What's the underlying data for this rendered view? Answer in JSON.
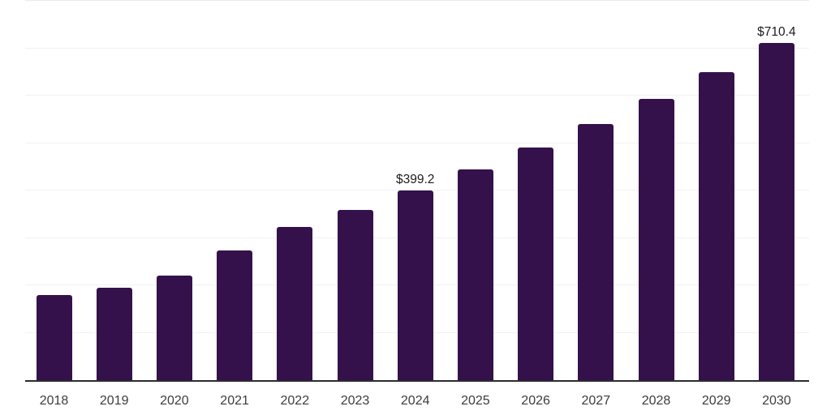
{
  "chart_data": {
    "type": "bar",
    "title": "",
    "xlabel": "",
    "ylabel": "",
    "legend_position": "none",
    "grid": "horizontal-light",
    "y_axis_tick_labels_visible": false,
    "ylim": [
      0,
      800
    ],
    "gridlines_every": 100,
    "categories": [
      "2018",
      "2019",
      "2020",
      "2021",
      "2022",
      "2023",
      "2024",
      "2025",
      "2026",
      "2027",
      "2028",
      "2029",
      "2030"
    ],
    "values": [
      179.2,
      194.5,
      220.1,
      273.0,
      322.5,
      358.4,
      399.2,
      443.7,
      489.8,
      541.0,
      593.9,
      650.2,
      710.4
    ],
    "bar_value_labels": [
      "",
      "",
      "",
      "",
      "",
      "",
      "$399.2",
      "",
      "",
      "",
      "",
      "",
      "$710.4"
    ],
    "colors": {
      "bar": "#34114a",
      "axis_line": "#2c2c30",
      "gridline": "#f0f1f4",
      "top_gridline": "#e9ebee",
      "bar_value_label_text": "#1c1c1c",
      "tick_label_text": "#3c3c3c",
      "background": "#ffffff"
    }
  }
}
